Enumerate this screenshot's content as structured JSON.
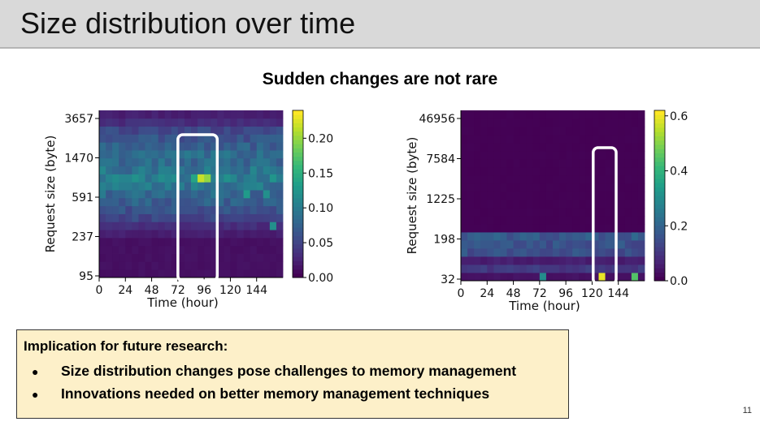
{
  "header": {
    "title": "Size distribution over time"
  },
  "subtitle": "Sudden changes are not rare",
  "chart_data": [
    {
      "type": "heatmap",
      "title": "",
      "xlabel": "Time (hour)",
      "ylabel": "Request size (byte)",
      "x_ticks": [
        "0",
        "24",
        "48",
        "72",
        "96",
        "120",
        "144"
      ],
      "x_range": [
        0,
        168
      ],
      "y_ticks": [
        "95",
        "237",
        "591",
        "1470",
        "3657"
      ],
      "colorbar": {
        "min": 0.0,
        "max": 0.24,
        "ticks": [
          "0.00",
          "0.05",
          "0.10",
          "0.15",
          "0.20"
        ]
      },
      "bins_per_row": 28,
      "row_profile": [
        0.01,
        0.01,
        0.01,
        0.01,
        0.01,
        0.02,
        0.03,
        0.05,
        0.06,
        0.07,
        0.08,
        0.09,
        0.1,
        0.09,
        0.08,
        0.08,
        0.07,
        0.06,
        0.05,
        0.03,
        0.02
      ],
      "hotspots": [
        {
          "hour": 90,
          "row": 12,
          "value": 0.22
        },
        {
          "hour": 96,
          "row": 12,
          "value": 0.2
        },
        {
          "hour": 84,
          "row": 12,
          "value": 0.14
        },
        {
          "hour": 132,
          "row": 10,
          "value": 0.13
        },
        {
          "hour": 150,
          "row": 10,
          "value": 0.12
        },
        {
          "hour": 156,
          "row": 6,
          "value": 0.12
        },
        {
          "hour": 36,
          "row": 11,
          "value": 0.1
        }
      ],
      "highlight": {
        "hour_start": 72,
        "hour_end": 108
      }
    },
    {
      "type": "heatmap",
      "title": "",
      "xlabel": "Time (hour)",
      "ylabel": "Request size (byte)",
      "x_ticks": [
        "0",
        "24",
        "48",
        "72",
        "96",
        "120",
        "144"
      ],
      "x_range": [
        0,
        168
      ],
      "y_ticks": [
        "32",
        "198",
        "1225",
        "7584",
        "46956"
      ],
      "colorbar": {
        "min": 0.0,
        "max": 0.62,
        "ticks": [
          "0.0",
          "0.2",
          "0.4",
          "0.6"
        ]
      },
      "bins_per_row": 28,
      "row_profile": [
        0.03,
        0.1,
        0.05,
        0.15,
        0.15,
        0.17,
        0.0,
        0.0,
        0.0,
        0.0,
        0.0,
        0.0,
        0.0,
        0.0,
        0.0,
        0.0,
        0.0,
        0.0,
        0.0,
        0.0,
        0.0
      ],
      "hotspots": [
        {
          "hour": 130,
          "row": 0,
          "value": 0.6
        },
        {
          "hour": 72,
          "row": 0,
          "value": 0.3
        },
        {
          "hour": 160,
          "row": 0,
          "value": 0.45
        }
      ],
      "highlight": {
        "hour_start": 121,
        "hour_end": 142
      }
    }
  ],
  "callout": {
    "heading": "Implication for future research:",
    "bullets": [
      "Size distribution changes pose challenges to memory management",
      "Innovations needed on better memory management techniques"
    ]
  },
  "page_number": "11"
}
